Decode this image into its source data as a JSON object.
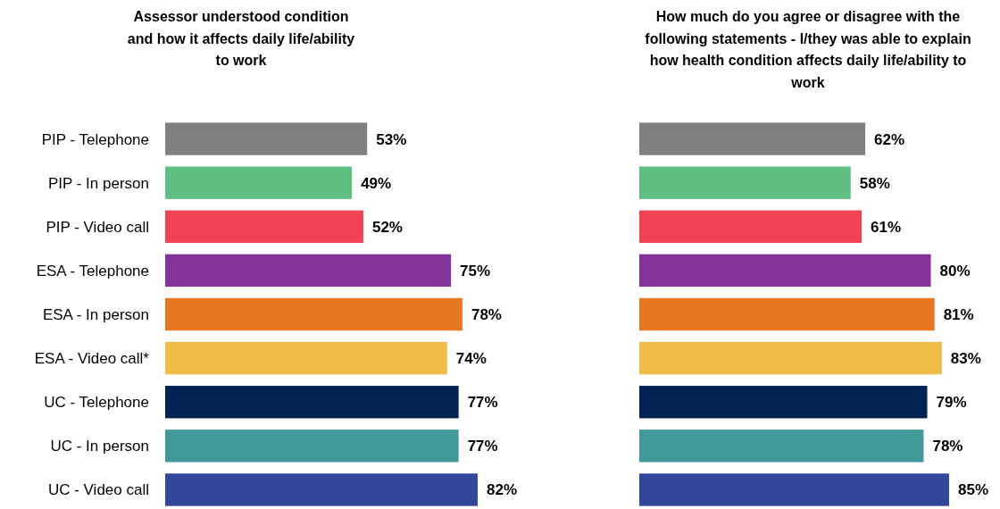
{
  "chart_data": [
    {
      "type": "bar",
      "orientation": "horizontal",
      "title": "Assessor understood condition and how it affects daily life/ability to work",
      "categories": [
        "PIP - Telephone",
        "PIP - In person",
        "PIP - Video call",
        "ESA - Telephone",
        "ESA - In person",
        "ESA - Video call*",
        "UC - Telephone",
        "UC - In person",
        "UC - Video call"
      ],
      "values": [
        53,
        49,
        52,
        75,
        78,
        74,
        77,
        77,
        82
      ],
      "value_labels": [
        "53%",
        "49%",
        "52%",
        "75%",
        "78%",
        "74%",
        "77%",
        "77%",
        "82%"
      ],
      "colors": [
        "#808080",
        "#5fbf82",
        "#f04455",
        "#833399",
        "#e87722",
        "#f0bc45",
        "#002352",
        "#419a99",
        "#30479a"
      ]
    },
    {
      "type": "bar",
      "orientation": "horizontal",
      "title": "How much do you agree or disagree with the following statements - I/they was able to explain how health condition affects daily life/ability to work",
      "categories": [
        null,
        null,
        null,
        null,
        null,
        null,
        null,
        null,
        null
      ],
      "values": [
        62,
        58,
        61,
        80,
        81,
        83,
        79,
        78,
        85
      ],
      "value_labels": [
        "62%",
        "58%",
        "61%",
        "80%",
        "81%",
        "83%",
        "79%",
        "78%",
        "85%"
      ],
      "colors": [
        "#808080",
        "#5fbf82",
        "#f04455",
        "#833399",
        "#e87722",
        "#f0bc45",
        "#002352",
        "#419a99",
        "#30479a"
      ]
    }
  ]
}
